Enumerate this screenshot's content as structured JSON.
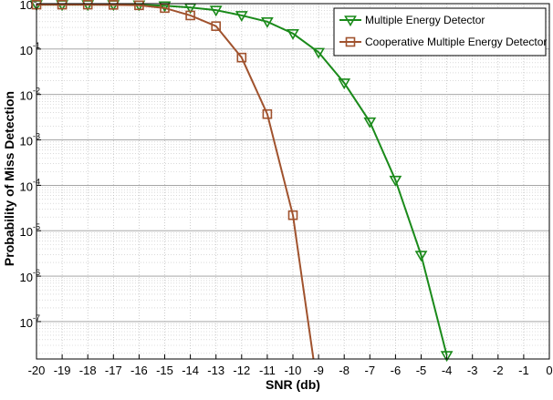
{
  "chart_data": {
    "type": "line",
    "xlabel": "SNR (db)",
    "ylabel": "Probability of Miss Detection",
    "x_ticks": [
      "-20",
      "-19",
      "-18",
      "-17",
      "-16",
      "-15",
      "-14",
      "-13",
      "-12",
      "-11",
      "-10",
      "-9",
      "-8",
      "-7",
      "-6",
      "-5",
      "-4",
      "-3",
      "-2",
      "-1",
      "0"
    ],
    "y_ticks": [
      {
        "base": "10",
        "exp": "0"
      },
      {
        "base": "10",
        "exp": "-1"
      },
      {
        "base": "10",
        "exp": "-2"
      },
      {
        "base": "10",
        "exp": "-3"
      },
      {
        "base": "10",
        "exp": "-4"
      },
      {
        "base": "10",
        "exp": "-5"
      },
      {
        "base": "10",
        "exp": "-6"
      },
      {
        "base": "10",
        "exp": "-7"
      }
    ],
    "xlim": [
      -20,
      0
    ],
    "ylim": [
      1.5e-08,
      1
    ],
    "yscale": "log",
    "grid": true,
    "legend_position": "top-right",
    "series": [
      {
        "name": "Multiple Energy Detector",
        "color": "#1a8a1a",
        "marker": "triangle-down",
        "x": [
          -20,
          -19,
          -18,
          -17,
          -16,
          -15,
          -14,
          -13,
          -12,
          -11,
          -10,
          -9,
          -8,
          -7,
          -6,
          -5,
          -4
        ],
        "y": [
          0.95,
          0.95,
          0.95,
          0.95,
          0.94,
          0.9,
          0.82,
          0.72,
          0.55,
          0.4,
          0.22,
          0.085,
          0.018,
          0.0025,
          0.00013,
          2.9e-06,
          1.8e-08
        ]
      },
      {
        "name": "Cooperative Multiple Energy Detector",
        "color": "#a0522d",
        "marker": "square",
        "x": [
          -20,
          -19,
          -18,
          -17,
          -16,
          -15,
          -14,
          -13,
          -12,
          -11,
          -10,
          -9.2
        ],
        "y": [
          0.95,
          0.95,
          0.95,
          0.94,
          0.92,
          0.8,
          0.55,
          0.32,
          0.065,
          0.0037,
          2.2e-05,
          1.5e-08
        ]
      }
    ]
  }
}
